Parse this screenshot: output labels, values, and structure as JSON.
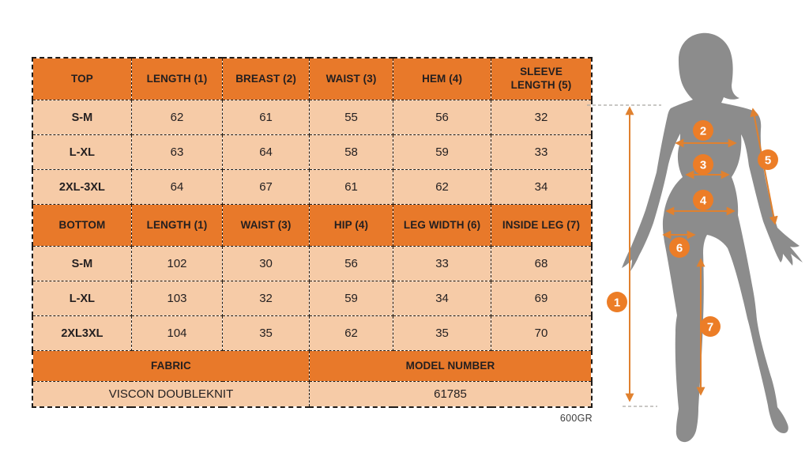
{
  "colors": {
    "header_orange": "#e8792a",
    "body_peach": "#f6cba7",
    "arrow_orange": "#e0812f",
    "badge_orange": "#ec7d27",
    "silhouette_gray": "#8c8c8c",
    "border_black": "#1f1c1a"
  },
  "size_table": {
    "top_section": {
      "header": [
        "TOP",
        "LENGTH (1)",
        "BREAST (2)",
        "WAIST (3)",
        "HEM (4)",
        "SLEEVE\nLENGTH (5)"
      ],
      "rows": [
        {
          "size": "S-M",
          "values": [
            "62",
            "61",
            "55",
            "56",
            "32"
          ]
        },
        {
          "size": "L-XL",
          "values": [
            "63",
            "64",
            "58",
            "59",
            "33"
          ]
        },
        {
          "size": "2XL-3XL",
          "values": [
            "64",
            "67",
            "61",
            "62",
            "34"
          ]
        }
      ]
    },
    "bottom_section": {
      "header": [
        "BOTTOM",
        "LENGTH (1)",
        "WAIST (3)",
        "HIP (4)",
        "LEG WIDTH (6)",
        "INSIDE LEG (7)"
      ],
      "rows": [
        {
          "size": "S-M",
          "values": [
            "102",
            "30",
            "56",
            "33",
            "68"
          ]
        },
        {
          "size": "L-XL",
          "values": [
            "103",
            "32",
            "59",
            "34",
            "69"
          ]
        },
        {
          "size": "2XL3XL",
          "values": [
            "104",
            "35",
            "62",
            "35",
            "70"
          ]
        }
      ]
    },
    "info_section": {
      "header": [
        "FABRIC",
        "MODEL NUMBER"
      ],
      "values": [
        "VISCON DOUBLEKNIT",
        "61785"
      ]
    },
    "footnote": "600GR"
  },
  "figure": {
    "markers": [
      "1",
      "2",
      "3",
      "4",
      "5",
      "6",
      "7"
    ]
  }
}
